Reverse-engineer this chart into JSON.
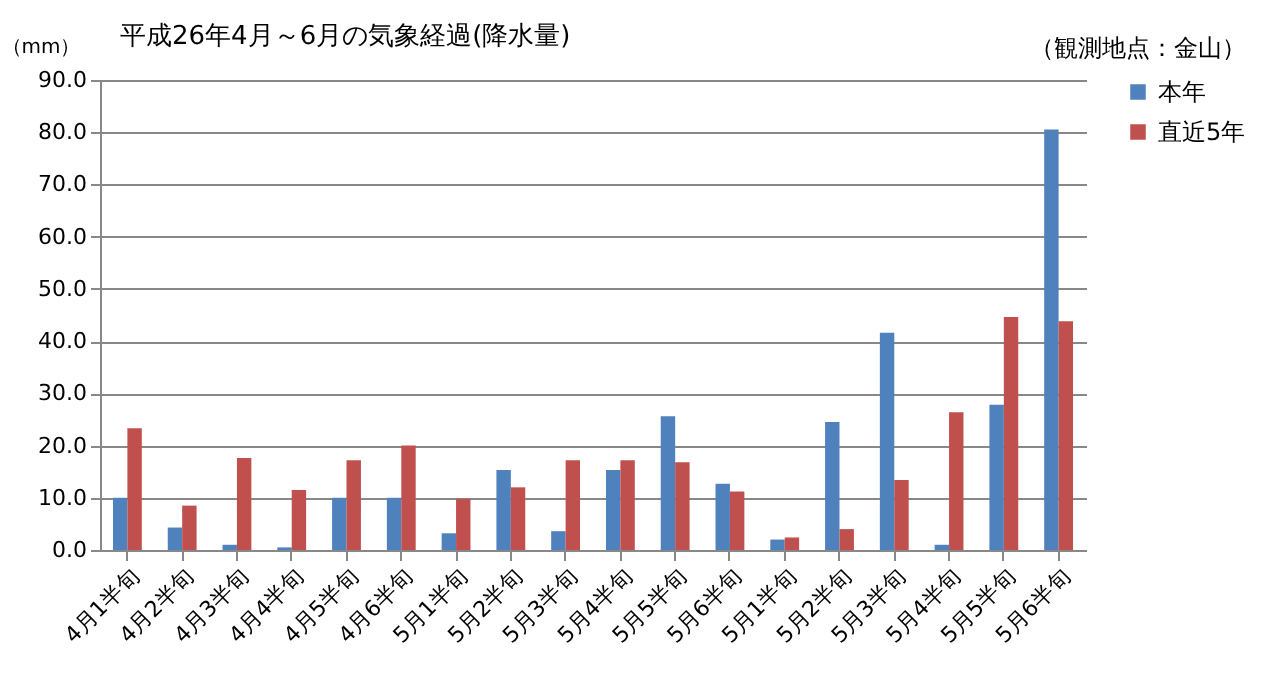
{
  "chart_data": {
    "type": "bar",
    "title": "平成26年4月～6月の気象経過(降水量)",
    "ylabel": "（mm）",
    "annotations": [
      "（観測地点：金山）"
    ],
    "categories": [
      "4月1半旬",
      "4月2半旬",
      "4月3半旬",
      "4月4半旬",
      "4月5半旬",
      "4月6半旬",
      "5月1半旬",
      "5月2半旬",
      "5月3半旬",
      "5月4半旬",
      "5月5半旬",
      "5月6半旬",
      "5月1半旬",
      "5月2半旬",
      "5月3半旬",
      "5月4半旬",
      "5月5半旬",
      "5月6半旬"
    ],
    "series": [
      {
        "name": "本年",
        "color": "#4f81bd",
        "values": [
          10.0,
          4.3,
          1.0,
          0.5,
          10.0,
          10.0,
          3.2,
          15.3,
          3.6,
          15.3,
          25.6,
          12.7,
          2.0,
          24.5,
          41.6,
          1.0,
          27.8,
          80.5
        ]
      },
      {
        "name": "直近5年",
        "color": "#c0504d",
        "values": [
          23.3,
          8.5,
          17.6,
          11.5,
          17.2,
          20.0,
          9.8,
          12.0,
          17.2,
          17.2,
          16.8,
          11.2,
          2.4,
          4.0,
          13.4,
          26.4,
          44.6,
          43.8
        ]
      }
    ],
    "ylim": [
      0,
      90
    ],
    "yticks": [
      {
        "value": 0,
        "label": "0.0"
      },
      {
        "value": 10,
        "label": "10.0"
      },
      {
        "value": 20,
        "label": "20.0"
      },
      {
        "value": 30,
        "label": "30.0"
      },
      {
        "value": 40,
        "label": "40.0"
      },
      {
        "value": 50,
        "label": "50.0"
      },
      {
        "value": 60,
        "label": "60.0"
      },
      {
        "value": 70,
        "label": "70.0"
      },
      {
        "value": 80,
        "label": "80.0"
      },
      {
        "value": 90,
        "label": "90.0"
      }
    ],
    "grid": "y",
    "legend": "right"
  }
}
